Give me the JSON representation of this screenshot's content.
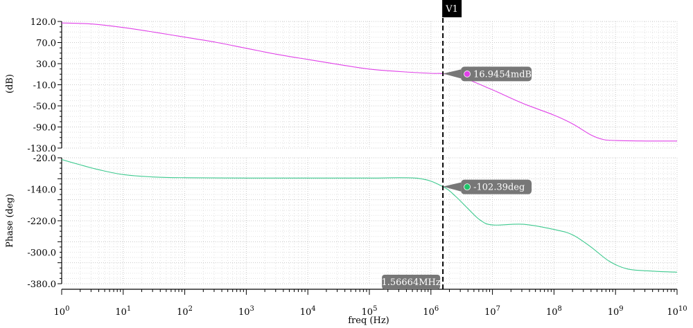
{
  "chart_data": [
    {
      "type": "line",
      "panel": "magnitude",
      "ylabel": "(dB)",
      "ylim": [
        -130,
        120
      ],
      "y_ticks": [
        "120.0",
        "70.0",
        "30.0",
        "-10.0",
        "-50.0",
        "-90.0",
        "-130.0"
      ],
      "grid": true,
      "series": [
        {
          "color": "#e040e8",
          "x_log10": [
            0,
            0.5,
            1,
            1.5,
            2,
            2.5,
            3,
            3.5,
            4,
            4.5,
            5,
            5.5,
            6,
            6.195,
            6.5,
            7,
            7.5,
            8,
            8.3,
            8.6,
            8.8,
            9,
            9.5,
            10
          ],
          "y": [
            117,
            115,
            108,
            99,
            89,
            79,
            67,
            55,
            45,
            35,
            26,
            21,
            17.5,
            16.9,
            10,
            -15,
            -42,
            -65,
            -82,
            -104,
            -113,
            -115,
            -116,
            -116
          ]
        }
      ],
      "marker": {
        "label": "16.9454mdB",
        "x_log10": 6.195,
        "y": 16.9454,
        "color": "#e040e8"
      }
    },
    {
      "type": "line",
      "panel": "phase",
      "ylabel": "Phase (deg)",
      "ylim": [
        -380,
        -20
      ],
      "y_ticks": [
        "-20.0",
        "-140.0",
        "-220.0",
        "-300.0",
        "-380.0"
      ],
      "grid": true,
      "series": [
        {
          "color": "#3cc98e",
          "x_log10": [
            0,
            0.3,
            0.6,
            1,
            1.5,
            2,
            3,
            4,
            5,
            5.8,
            6.195,
            6.4,
            6.6,
            6.8,
            7,
            7.5,
            8,
            8.3,
            8.6,
            8.9,
            9.2,
            9.6,
            10
          ],
          "y": [
            -25,
            -40,
            -54,
            -68,
            -75,
            -77,
            -78,
            -78,
            -78,
            -79,
            -102.39,
            -130,
            -165,
            -198,
            -212,
            -210,
            -225,
            -240,
            -275,
            -316,
            -338,
            -344,
            -347
          ]
        }
      ],
      "marker": {
        "label": "-102.39deg",
        "x_log10": 6.195,
        "y": -102.39,
        "color": "#1fc46a"
      }
    }
  ],
  "x_axis": {
    "label": "freq (Hz)",
    "scale": "log",
    "range_log10": [
      0,
      10
    ],
    "tick_mantissa": "10",
    "tick_exponents": [
      "0",
      "1",
      "2",
      "3",
      "4",
      "5",
      "6",
      "7",
      "8",
      "9",
      "10"
    ]
  },
  "cursor": {
    "name": "V1",
    "x_label": "1.56664MHz",
    "x_log10": 6.195
  }
}
